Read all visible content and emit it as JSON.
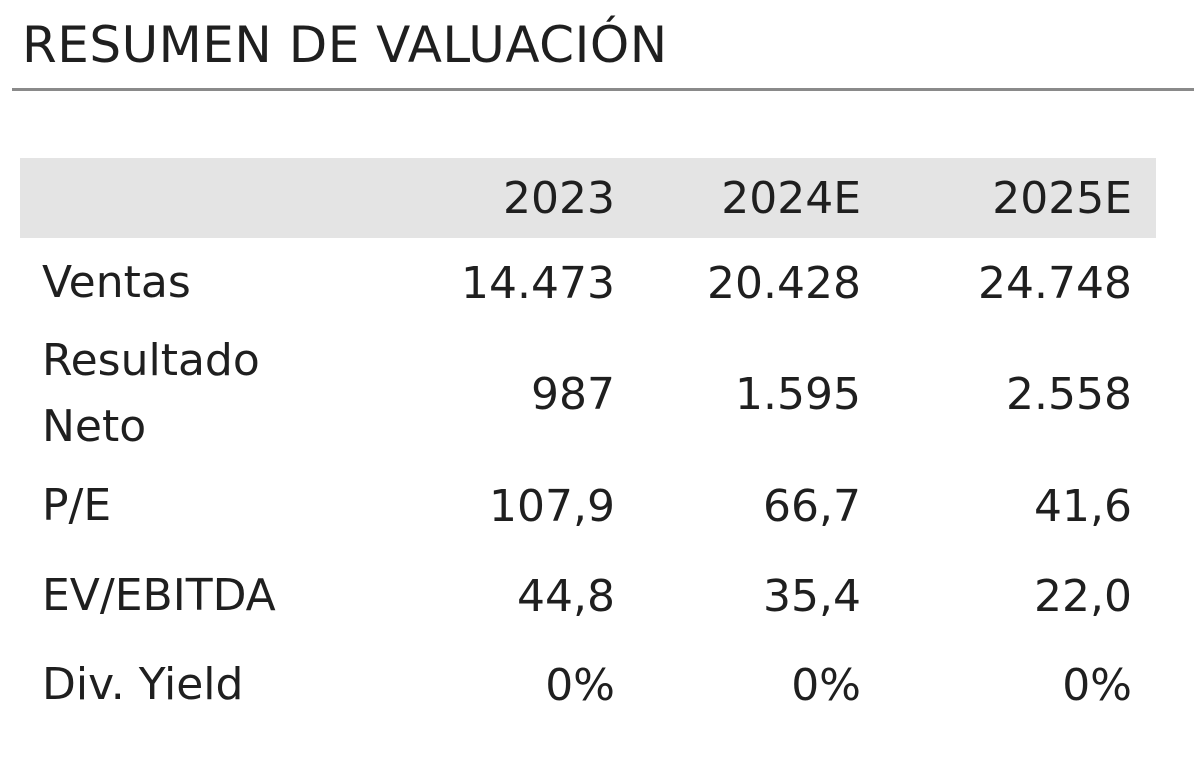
{
  "title": "RESUMEN DE VALUACIÓN",
  "table": {
    "columns": [
      "",
      "2023",
      "2024E",
      "2025E"
    ],
    "rows": [
      {
        "label": "Ventas",
        "values": [
          "14.473",
          "20.428",
          "24.748"
        ]
      },
      {
        "label_line1": "Resultado",
        "label_line2": "Neto",
        "values": [
          "987",
          "1.595",
          "2.558"
        ]
      },
      {
        "label": "P/E",
        "values": [
          "107,9",
          "66,7",
          "41,6"
        ]
      },
      {
        "label": "EV/EBITDA",
        "values": [
          "44,8",
          "35,4",
          "22,0"
        ]
      },
      {
        "label": "Div. Yield",
        "values": [
          "0%",
          "0%",
          "0%"
        ]
      }
    ]
  },
  "colors": {
    "header_bg": "#e4e4e4",
    "rule": "#8a8a8a",
    "text": "#1f1f1f"
  }
}
